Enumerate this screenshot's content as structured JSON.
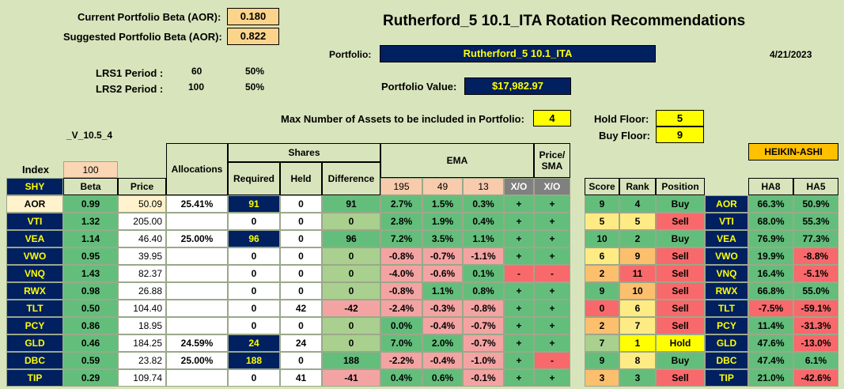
{
  "header": {
    "cur_beta_label": "Current Portfolio Beta (AOR):",
    "cur_beta_value": "0.180",
    "sug_beta_label": "Suggested Portfolio Beta (AOR):",
    "sug_beta_value": "0.822",
    "title": "Rutherford_5 10.1_ITA Rotation Recommendations",
    "portfolio_label": "Portfolio:",
    "portfolio_value": "Rutherford_5 10.1_ITA",
    "date": "4/21/2023",
    "lrs1_label": "LRS1 Period :",
    "lrs1_period": "60",
    "lrs1_pct": "50%",
    "lrs2_label": "LRS2 Period :",
    "lrs2_period": "100",
    "lrs2_pct": "50%",
    "pv_label": "Portfolio Value:",
    "pv_value": "$17,982.97",
    "max_label": "Max Number of Assets to be included in Portfolio:",
    "max_value": "4",
    "hold_label": "Hold Floor:",
    "hold_value": "5",
    "buy_label": "Buy Floor:",
    "buy_value": "9",
    "version": "_V_10.5_4",
    "heikin": "HEIKIN-ASHI"
  },
  "table": {
    "index_label": "Index",
    "index_value": "100",
    "shy": "SHY",
    "beta": "Beta",
    "price": "Price",
    "allocations": "Allocations",
    "shares": "Shares",
    "required": "Required",
    "held": "Held",
    "difference": "Difference",
    "ema": "EMA",
    "ema195": "195",
    "ema49": "49",
    "ema13": "13",
    "xo": "X/O",
    "price_sma": "Price/ SMA",
    "xo2": "X/O",
    "score": "Score",
    "rank": "Rank",
    "position": "Position",
    "ha8": "HA8",
    "ha5": "HA5"
  },
  "rows": [
    {
      "sym": "AOR",
      "beta": "0.99",
      "price": "50.09",
      "alloc": "25.41%",
      "req": "91",
      "held": "0",
      "diff": "91",
      "e195": "2.7%",
      "e49": "1.5%",
      "e13": "0.3%",
      "xo": "+",
      "psma": "+",
      "score": "9",
      "rank": "4",
      "pos": "Buy",
      "ha8": "66.3%",
      "ha5": "50.9%"
    },
    {
      "sym": "VTI",
      "beta": "1.32",
      "price": "205.00",
      "alloc": "",
      "req": "0",
      "held": "0",
      "diff": "0",
      "e195": "2.8%",
      "e49": "1.9%",
      "e13": "0.4%",
      "xo": "+",
      "psma": "+",
      "score": "5",
      "rank": "5",
      "pos": "Sell",
      "ha8": "68.0%",
      "ha5": "55.3%"
    },
    {
      "sym": "VEA",
      "beta": "1.14",
      "price": "46.40",
      "alloc": "25.00%",
      "req": "96",
      "held": "0",
      "diff": "96",
      "e195": "7.2%",
      "e49": "3.5%",
      "e13": "1.1%",
      "xo": "+",
      "psma": "+",
      "score": "10",
      "rank": "2",
      "pos": "Buy",
      "ha8": "76.9%",
      "ha5": "77.3%"
    },
    {
      "sym": "VWO",
      "beta": "0.95",
      "price": "39.95",
      "alloc": "",
      "req": "0",
      "held": "0",
      "diff": "0",
      "e195": "-0.8%",
      "e49": "-0.7%",
      "e13": "-1.1%",
      "xo": "+",
      "psma": "+",
      "score": "6",
      "rank": "9",
      "pos": "Sell",
      "ha8": "19.9%",
      "ha5": "-8.8%"
    },
    {
      "sym": "VNQ",
      "beta": "1.43",
      "price": "82.37",
      "alloc": "",
      "req": "0",
      "held": "0",
      "diff": "0",
      "e195": "-4.0%",
      "e49": "-0.6%",
      "e13": "0.1%",
      "xo": "-",
      "psma": "-",
      "score": "2",
      "rank": "11",
      "pos": "Sell",
      "ha8": "16.4%",
      "ha5": "-5.1%"
    },
    {
      "sym": "RWX",
      "beta": "0.98",
      "price": "26.88",
      "alloc": "",
      "req": "0",
      "held": "0",
      "diff": "0",
      "e195": "-0.8%",
      "e49": "1.1%",
      "e13": "0.8%",
      "xo": "+",
      "psma": "+",
      "score": "9",
      "rank": "10",
      "pos": "Sell",
      "ha8": "66.8%",
      "ha5": "55.0%"
    },
    {
      "sym": "TLT",
      "beta": "0.50",
      "price": "104.40",
      "alloc": "",
      "req": "0",
      "held": "42",
      "diff": "-42",
      "e195": "-2.4%",
      "e49": "-0.3%",
      "e13": "-0.8%",
      "xo": "+",
      "psma": "+",
      "score": "0",
      "rank": "6",
      "pos": "Sell",
      "ha8": "-7.5%",
      "ha5": "-59.1%"
    },
    {
      "sym": "PCY",
      "beta": "0.86",
      "price": "18.95",
      "alloc": "",
      "req": "0",
      "held": "0",
      "diff": "0",
      "e195": "0.0%",
      "e49": "-0.4%",
      "e13": "-0.7%",
      "xo": "+",
      "psma": "+",
      "score": "2",
      "rank": "7",
      "pos": "Sell",
      "ha8": "11.4%",
      "ha5": "-31.3%"
    },
    {
      "sym": "GLD",
      "beta": "0.46",
      "price": "184.25",
      "alloc": "24.59%",
      "req": "24",
      "held": "24",
      "diff": "0",
      "e195": "7.0%",
      "e49": "2.0%",
      "e13": "-0.7%",
      "xo": "+",
      "psma": "+",
      "score": "7",
      "rank": "1",
      "pos": "Hold",
      "ha8": "47.6%",
      "ha5": "-13.0%"
    },
    {
      "sym": "DBC",
      "beta": "0.59",
      "price": "23.82",
      "alloc": "25.00%",
      "req": "188",
      "held": "0",
      "diff": "188",
      "e195": "-2.2%",
      "e49": "-0.4%",
      "e13": "-1.0%",
      "xo": "+",
      "psma": "-",
      "score": "9",
      "rank": "8",
      "pos": "Buy",
      "ha8": "47.4%",
      "ha5": "6.1%"
    },
    {
      "sym": "TIP",
      "beta": "0.29",
      "price": "109.74",
      "alloc": "",
      "req": "0",
      "held": "41",
      "diff": "-41",
      "e195": "0.4%",
      "e49": "0.6%",
      "e13": "-0.1%",
      "xo": "+",
      "psma": "+",
      "score": "3",
      "rank": "3",
      "pos": "Sell",
      "ha8": "21.0%",
      "ha5": "-42.6%"
    }
  ]
}
